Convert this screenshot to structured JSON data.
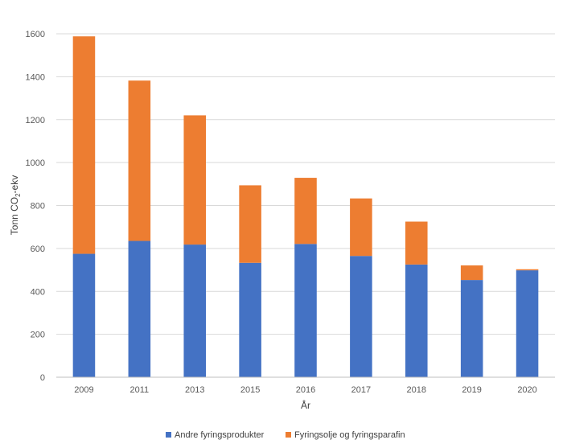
{
  "chart_data": {
    "type": "bar",
    "stacked": true,
    "categories": [
      "2009",
      "2011",
      "2013",
      "2015",
      "2016",
      "2017",
      "2018",
      "2019",
      "2020"
    ],
    "series": [
      {
        "name": "Andre fyringsprodukter",
        "color": "#4472C4",
        "values": [
          575,
          635,
          618,
          533,
          621,
          565,
          525,
          453,
          498
        ]
      },
      {
        "name": "Fyringsolje og fyringsparafin",
        "color": "#ED7D31",
        "values": [
          1013,
          747,
          602,
          361,
          308,
          268,
          200,
          68,
          5
        ]
      }
    ],
    "xlabel": "År",
    "ylabel": {
      "pre": "Tonn CO",
      "sub": "2",
      "post": "-ekv"
    },
    "ylim": [
      0,
      1600
    ],
    "yticks": [
      0,
      200,
      400,
      600,
      800,
      1000,
      1200,
      1400,
      1600
    ],
    "grid": true,
    "legend_position": "bottom"
  }
}
